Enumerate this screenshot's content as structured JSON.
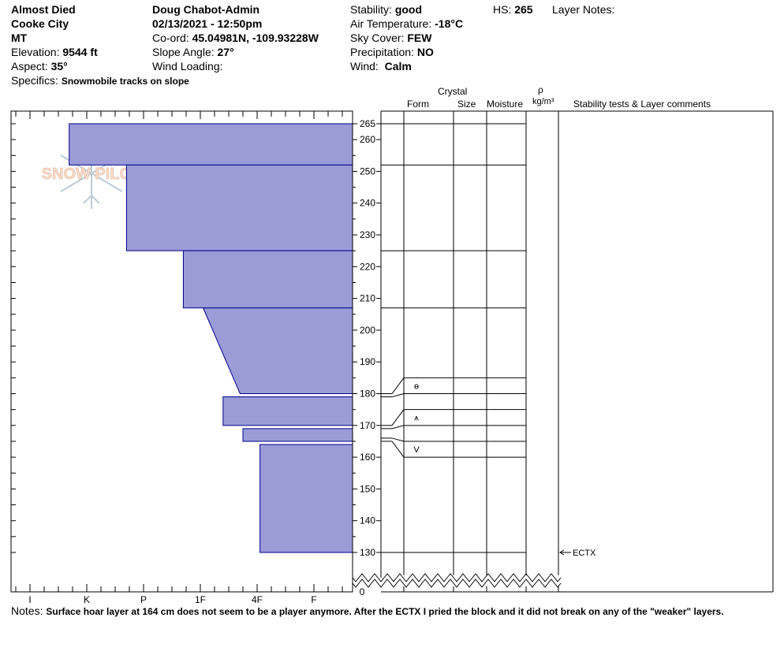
{
  "header": {
    "site": "Almost Died",
    "city": "Cooke City",
    "state": "MT",
    "elevation_label": "Elevation:",
    "elevation": "9544 ft",
    "aspect_label": "Aspect:",
    "aspect": "35°",
    "specifics_label": "Specifics:",
    "specifics": "Snowmobile tracks on slope",
    "observer": "Doug Chabot-Admin",
    "datetime": "02/13/2021 - 12:50pm",
    "coord_label": "Co-ord:",
    "coord": "45.04981N, -109.93228W",
    "slope_label": "Slope Angle:",
    "slope": "27°",
    "wind_loading_label": "Wind Loading:",
    "stability_label": "Stability:",
    "stability": "good",
    "air_temp_label": "Air Temperature:",
    "air_temp": "-18°C",
    "sky_label": "Sky Cover:",
    "sky": "FEW",
    "precip_label": "Precipitation:",
    "precip": "NO",
    "wind_label": "Wind:",
    "wind": "Calm",
    "hs_label": "HS:",
    "hs": "265",
    "layer_notes_label": "Layer Notes:"
  },
  "columns": {
    "crystal": "Crystal",
    "form": "Form",
    "size": "Size",
    "moisture": "Moisture",
    "rho": "ρ",
    "density_unit": "kg/m³",
    "stability_tests": "Stability tests & Layer comments"
  },
  "notes_label": "Notes:",
  "notes": "Surface hoar layer at 164 cm does not seem to be a player anymore. After the ECTX I pried the block and it did not break on any of the \"weaker\" layers.",
  "logo_text": "SNOW PILOT",
  "chart_data": {
    "type": "bar",
    "orientation": "horizontal",
    "description_of_axes": "snow height (cm) vs hand hardness",
    "y_ticks": [
      130,
      140,
      150,
      160,
      170,
      180,
      190,
      200,
      210,
      220,
      230,
      240,
      250,
      260,
      265
    ],
    "y_zero_label": "0",
    "y_range": [
      130,
      265
    ],
    "hardness_ticks": [
      "I",
      "K",
      "P",
      "1F",
      "4F",
      "F"
    ],
    "layers": [
      {
        "top": 265,
        "bottom": 252,
        "hardness_top": 0.69,
        "hardness_bottom": 0.69
      },
      {
        "top": 252,
        "bottom": 225,
        "hardness_top": 1.7,
        "hardness_bottom": 1.7
      },
      {
        "top": 225,
        "bottom": 207,
        "hardness_top": 2.7,
        "hardness_bottom": 2.7
      },
      {
        "top": 207,
        "bottom": 180,
        "hardness_top": 3.05,
        "hardness_bottom": 3.7
      },
      {
        "top": 179,
        "bottom": 170,
        "hardness_top": 3.4,
        "hardness_bottom": 3.4
      },
      {
        "top": 169,
        "bottom": 165,
        "hardness_top": 3.75,
        "hardness_bottom": 3.75
      },
      {
        "top": 164,
        "bottom": 130,
        "hardness_top": 4.05,
        "hardness_bottom": 4.05
      }
    ],
    "boundaries": [
      265,
      252,
      225,
      207,
      185,
      180,
      175,
      170,
      165,
      160,
      130
    ],
    "crystal_marks": [
      {
        "height": 182.5,
        "symbol": "ɵ"
      },
      {
        "height": 172.5,
        "symbol": "⩚"
      },
      {
        "height": 162.5,
        "symbol": "V"
      }
    ],
    "stability_tests": [
      {
        "height": 130,
        "label": "ECTX"
      }
    ],
    "colors": {
      "fill": "#9b9bd7",
      "stroke": "#00008b"
    }
  }
}
